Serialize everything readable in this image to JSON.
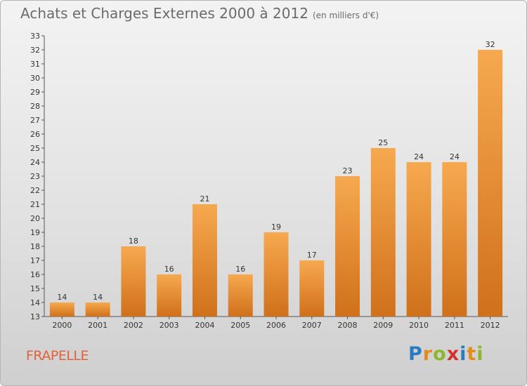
{
  "title": "Achats et Charges Externes 2000 à 2012",
  "unit": "(en milliers d'€)",
  "commune": "FRAPELLE",
  "logo": {
    "text": "Proxiti",
    "colors": [
      "#2b7bc0",
      "#e58a1e",
      "#8db72c",
      "#d2322b"
    ]
  },
  "colors": {
    "bar_top": "#f7a94f",
    "bar_bottom": "#d0701b",
    "axis": "#555555",
    "grid": "#ffffff"
  },
  "chart_data": {
    "type": "bar",
    "title": "Achats et Charges Externes 2000 à 2012",
    "subtitle": "(en milliers d'€)",
    "xlabel": "",
    "ylabel": "",
    "categories": [
      "2000",
      "2001",
      "2002",
      "2003",
      "2004",
      "2005",
      "2006",
      "2007",
      "2008",
      "2009",
      "2010",
      "2011",
      "2012"
    ],
    "values": [
      14,
      14,
      18,
      16,
      21,
      16,
      19,
      17,
      23,
      25,
      24,
      24,
      32
    ],
    "ylim": [
      13,
      33
    ],
    "ytick_step": 1,
    "data_labels": true,
    "grid": false
  }
}
